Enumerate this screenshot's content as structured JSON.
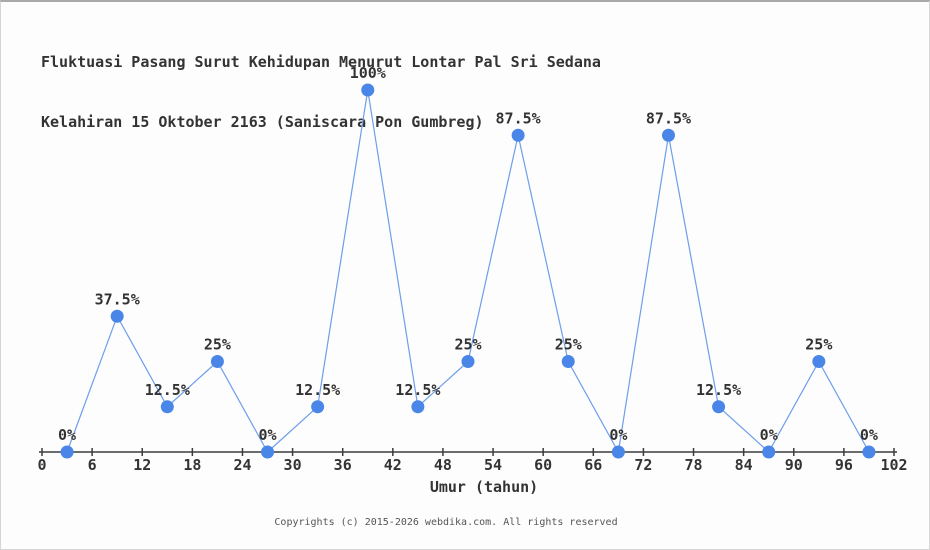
{
  "header": {
    "title_line1": "Fluktuasi Pasang Surut Kehidupan Menurut Lontar Pal Sri Sedana",
    "title_line2": "Kelahiran 15 Oktober 2163 (Saniscara Pon Gumbreg)"
  },
  "footer": {
    "copyright": "Copyrights (c) 2015-2026 webdika.com. All rights reserved"
  },
  "chart_data": {
    "type": "line",
    "title": "Fluktuasi Pasang Surut Kehidupan Menurut Lontar Pal Sri Sedana Kelahiran 15 Oktober 2163 (Saniscara Pon Gumbreg)",
    "xlabel": "Umur (tahun)",
    "ylabel": "",
    "x": [
      3,
      9,
      15,
      21,
      27,
      33,
      39,
      45,
      51,
      57,
      63,
      69,
      75,
      81,
      87,
      93,
      99
    ],
    "values": [
      0,
      37.5,
      12.5,
      25,
      0,
      12.5,
      100,
      12.5,
      25,
      87.5,
      25,
      0,
      87.5,
      12.5,
      0,
      25,
      0
    ],
    "point_labels": [
      "0%",
      "37.5%",
      "12.5%",
      "25%",
      "0%",
      "12.5%",
      "100%",
      "12.5%",
      "25%",
      "87.5%",
      "25%",
      "0%",
      "87.5%",
      "12.5%",
      "0%",
      "25%",
      "0%"
    ],
    "x_ticks": [
      0,
      6,
      12,
      18,
      24,
      30,
      36,
      42,
      48,
      54,
      60,
      66,
      72,
      78,
      84,
      90,
      96,
      102
    ],
    "xlim": [
      0,
      102
    ],
    "ylim": [
      0,
      100
    ],
    "grid": false,
    "legend": null,
    "colors": {
      "line": "#6d9eeb",
      "marker": "#4a86e8",
      "axis": "#3c3c3c",
      "text": "#333333",
      "background": "#fdfdfd"
    }
  }
}
